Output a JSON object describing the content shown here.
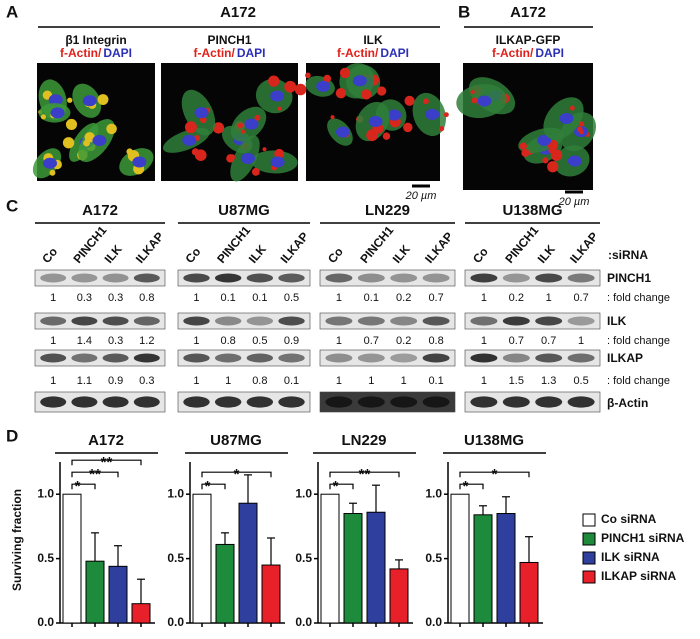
{
  "panel_a": {
    "label": "A",
    "title": "A172",
    "images": [
      {
        "marker": "β1 Integrin",
        "actin": "f-Actin/",
        "dapi": "DAPI"
      },
      {
        "marker": "PINCH1",
        "actin": "f-Actin/",
        "dapi": "DAPI"
      },
      {
        "marker": "ILK",
        "actin": "f-Actin/",
        "dapi": "DAPI"
      }
    ],
    "scale_bar": "20 µm"
  },
  "panel_b": {
    "label": "B",
    "title": "A172",
    "marker": "ILKAP-GFP",
    "actin": "f-Actin/",
    "dapi": "DAPI",
    "scale_bar": "20 µm"
  },
  "panel_c": {
    "label": "C",
    "lanes": [
      "Co",
      "PINCH1",
      "ILK",
      "ILKAP"
    ],
    "lane_suffix": ":siRNA",
    "fold_label": ": fold change",
    "proteins": [
      "PINCH1",
      "ILK",
      "ILKAP",
      "β-Actin"
    ],
    "cell_lines": [
      {
        "name": "A172",
        "fold_changes": [
          [
            1,
            0.3,
            0.3,
            0.8
          ],
          [
            1,
            1.4,
            0.3,
            1.2
          ],
          [
            1,
            1.1,
            0.9,
            0.3
          ]
        ]
      },
      {
        "name": "U87MG",
        "fold_changes": [
          [
            1,
            0.1,
            0.1,
            0.5
          ],
          [
            1,
            0.8,
            0.5,
            0.9
          ],
          [
            1,
            1,
            0.8,
            0.1
          ]
        ]
      },
      {
        "name": "LN229",
        "fold_changes": [
          [
            1,
            0.1,
            0.2,
            0.7
          ],
          [
            1,
            0.7,
            0.2,
            0.8
          ],
          [
            1,
            1,
            1,
            0.1
          ]
        ]
      },
      {
        "name": "U138MG",
        "fold_changes": [
          [
            1,
            0.2,
            1,
            0.7
          ],
          [
            1,
            0.7,
            0.7,
            1
          ],
          [
            1,
            1.5,
            1.3,
            0.5
          ]
        ]
      }
    ]
  },
  "panel_d": {
    "label": "D",
    "ylabel": "Surviving fraction",
    "legend": {
      "names": [
        "Co siRNA",
        "PINCH1 siRNA",
        "ILK siRNA",
        "ILKAP siRNA"
      ],
      "colors": [
        "#ffffff",
        "#1e8a3c",
        "#2e3f9e",
        "#e8202a"
      ]
    }
  },
  "chart_data": [
    {
      "type": "bar",
      "title": "A172",
      "categories": [
        null,
        null,
        null,
        null
      ],
      "values": [
        1,
        0.48,
        0.44,
        0.15
      ],
      "errors": [
        null,
        0.22,
        0.16,
        0.19
      ],
      "annotations": [
        "*",
        "**",
        "**"
      ],
      "ylim": [
        0,
        1.25
      ],
      "yticks": [
        {
          "value": 0,
          "label": "0.0"
        },
        0.5,
        {
          "value": 1,
          "label": "1.0"
        }
      ]
    },
    {
      "type": "bar",
      "title": "U87MG",
      "categories": [
        null,
        null,
        null,
        null
      ],
      "values": [
        1,
        0.61,
        0.93,
        0.45
      ],
      "errors": [
        null,
        0.09,
        0.22,
        0.21
      ],
      "annotations": [
        "*",
        "*"
      ],
      "ylim": [
        0,
        1.25
      ],
      "yticks": [
        {
          "value": 0,
          "label": "0.0"
        },
        0.5,
        {
          "value": 1,
          "label": "1.0"
        }
      ]
    },
    {
      "type": "bar",
      "title": "LN229",
      "categories": [
        null,
        null,
        null,
        null
      ],
      "values": [
        1,
        0.85,
        0.86,
        0.42
      ],
      "errors": [
        null,
        0.08,
        0.21,
        0.07
      ],
      "annotations": [
        "*",
        "**"
      ],
      "ylim": [
        0,
        1.25
      ],
      "yticks": [
        {
          "value": 0,
          "label": "0.0"
        },
        0.5,
        {
          "value": 1,
          "label": "1.0"
        }
      ]
    },
    {
      "type": "bar",
      "title": "U138MG",
      "categories": [
        null,
        null,
        null,
        null
      ],
      "values": [
        1,
        0.84,
        0.85,
        0.47
      ],
      "errors": [
        null,
        0.07,
        0.13,
        0.2
      ],
      "annotations": [
        "*",
        "*"
      ],
      "ylim": [
        0,
        1.25
      ],
      "yticks": [
        {
          "value": 0,
          "label": "0.0"
        },
        0.5,
        {
          "value": 1,
          "label": "1.0"
        }
      ]
    }
  ]
}
